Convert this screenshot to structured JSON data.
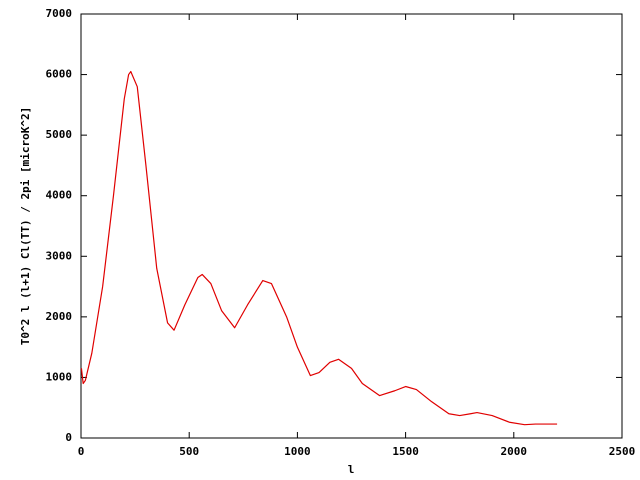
{
  "chart_data": {
    "type": "line",
    "xlabel": "l",
    "ylabel": "T0^2 l (l+1) Cl(TT) / 2pi [microK^2]",
    "x": [
      2,
      10,
      20,
      50,
      100,
      150,
      200,
      220,
      230,
      260,
      300,
      350,
      400,
      430,
      480,
      540,
      560,
      600,
      650,
      710,
      770,
      840,
      880,
      950,
      1000,
      1060,
      1100,
      1150,
      1190,
      1250,
      1300,
      1380,
      1450,
      1500,
      1550,
      1620,
      1700,
      1750,
      1800,
      1830,
      1900,
      1980,
      2050,
      2100,
      2200
    ],
    "values": [
      1150,
      900,
      950,
      1400,
      2500,
      4000,
      5600,
      6000,
      6050,
      5800,
      4500,
      2800,
      1900,
      1780,
      2200,
      2650,
      2700,
      2550,
      2100,
      1820,
      2200,
      2600,
      2550,
      2000,
      1500,
      1030,
      1080,
      1250,
      1300,
      1150,
      900,
      700,
      780,
      850,
      800,
      600,
      400,
      370,
      400,
      420,
      370,
      260,
      220,
      230,
      230
    ],
    "color": "#e00000",
    "xlim": [
      0,
      2500
    ],
    "xticks": [
      0,
      500,
      1000,
      1500,
      2000,
      2500
    ],
    "ylim": [
      0,
      7000
    ],
    "yticks": [
      0,
      1000,
      2000,
      3000,
      4000,
      5000,
      6000,
      7000
    ]
  }
}
